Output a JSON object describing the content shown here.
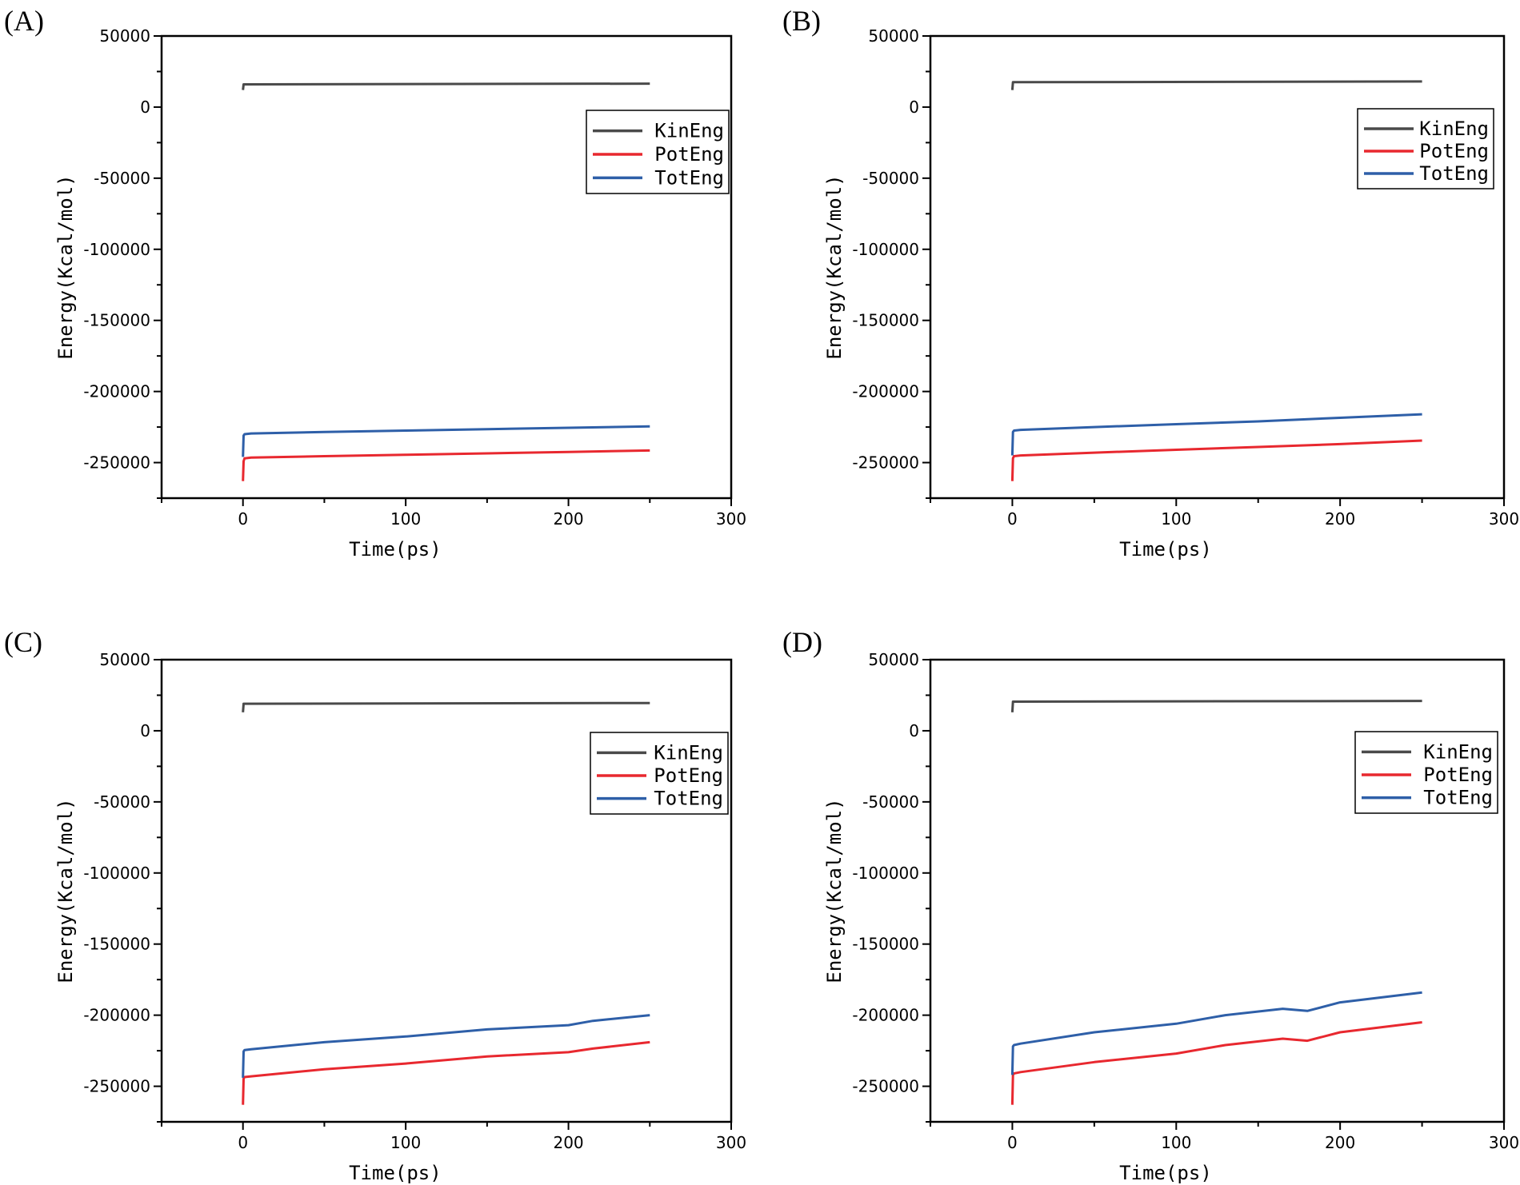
{
  "chart_data": [
    {
      "panel_label": "(A)",
      "type": "line",
      "xlabel": "Time(ps)",
      "ylabel": "Energy(Kcal/mol)",
      "xlim": [
        -50,
        300
      ],
      "ylim": [
        -275000,
        50000
      ],
      "xticks": [
        0,
        100,
        200,
        300
      ],
      "yticks": [
        50000,
        0,
        -50000,
        -100000,
        -150000,
        -200000,
        -250000
      ],
      "legend_position": "top-right",
      "series": [
        {
          "name": "KinEng",
          "color": "#4a4a4a",
          "points": [
            [
              0,
              12000
            ],
            [
              0.4,
              16000
            ],
            [
              250,
              16500
            ]
          ]
        },
        {
          "name": "PotEng",
          "color": "#e8282f",
          "points": [
            [
              0,
              -263000
            ],
            [
              0.4,
              -249000
            ],
            [
              1,
              -247000
            ],
            [
              5,
              -246500
            ],
            [
              50,
              -245500
            ],
            [
              100,
              -244500
            ],
            [
              150,
              -243500
            ],
            [
              200,
              -242500
            ],
            [
              250,
              -241500
            ]
          ]
        },
        {
          "name": "TotEng",
          "color": "#2e5fa8",
          "points": [
            [
              0,
              -246000
            ],
            [
              0.4,
              -231000
            ],
            [
              1,
              -230000
            ],
            [
              5,
              -229500
            ],
            [
              50,
              -228500
            ],
            [
              100,
              -227500
            ],
            [
              150,
              -226500
            ],
            [
              200,
              -225500
            ],
            [
              250,
              -224500
            ]
          ]
        }
      ]
    },
    {
      "panel_label": "(B)",
      "type": "line",
      "xlabel": "Time(ps)",
      "ylabel": "Energy(Kcal/mol)",
      "xlim": [
        -50,
        300
      ],
      "ylim": [
        -275000,
        50000
      ],
      "xticks": [
        0,
        100,
        200,
        300
      ],
      "yticks": [
        50000,
        0,
        -50000,
        -100000,
        -150000,
        -200000,
        -250000
      ],
      "legend_position": "top-right",
      "series": [
        {
          "name": "KinEng",
          "color": "#4a4a4a",
          "points": [
            [
              0,
              12000
            ],
            [
              0.4,
              17500
            ],
            [
              250,
              18000
            ]
          ]
        },
        {
          "name": "PotEng",
          "color": "#e8282f",
          "points": [
            [
              0,
              -263000
            ],
            [
              0.4,
              -247000
            ],
            [
              1,
              -245500
            ],
            [
              5,
              -245000
            ],
            [
              50,
              -243000
            ],
            [
              100,
              -241000
            ],
            [
              150,
              -239000
            ],
            [
              200,
              -237000
            ],
            [
              250,
              -234500
            ]
          ]
        },
        {
          "name": "TotEng",
          "color": "#2e5fa8",
          "points": [
            [
              0,
              -245000
            ],
            [
              0.4,
              -228500
            ],
            [
              1,
              -227500
            ],
            [
              5,
              -227000
            ],
            [
              50,
              -225000
            ],
            [
              100,
              -223000
            ],
            [
              150,
              -221000
            ],
            [
              200,
              -218500
            ],
            [
              250,
              -216000
            ]
          ]
        }
      ]
    },
    {
      "panel_label": "(C)",
      "type": "line",
      "xlabel": "Time(ps)",
      "ylabel": "Energy(Kcal/mol)",
      "xlim": [
        -50,
        300
      ],
      "ylim": [
        -275000,
        50000
      ],
      "xticks": [
        0,
        100,
        200,
        300
      ],
      "yticks": [
        50000,
        0,
        -50000,
        -100000,
        -150000,
        -200000,
        -250000
      ],
      "legend_position": "top-right",
      "series": [
        {
          "name": "KinEng",
          "color": "#4a4a4a",
          "points": [
            [
              0,
              13000
            ],
            [
              0.4,
              19000
            ],
            [
              250,
              19500
            ]
          ]
        },
        {
          "name": "PotEng",
          "color": "#e8282f",
          "points": [
            [
              0,
              -263000
            ],
            [
              0.4,
              -244500
            ],
            [
              1,
              -243500
            ],
            [
              5,
              -243000
            ],
            [
              50,
              -238000
            ],
            [
              100,
              -234000
            ],
            [
              150,
              -229000
            ],
            [
              200,
              -226000
            ],
            [
              215,
              -223500
            ],
            [
              250,
              -219000
            ]
          ]
        },
        {
          "name": "TotEng",
          "color": "#2e5fa8",
          "points": [
            [
              0,
              -244000
            ],
            [
              0.4,
              -225500
            ],
            [
              1,
              -224500
            ],
            [
              5,
              -224000
            ],
            [
              50,
              -219000
            ],
            [
              100,
              -215000
            ],
            [
              150,
              -210000
            ],
            [
              200,
              -207000
            ],
            [
              215,
              -204000
            ],
            [
              250,
              -200000
            ]
          ]
        }
      ]
    },
    {
      "panel_label": "(D)",
      "type": "line",
      "xlabel": "Time(ps)",
      "ylabel": "Energy(Kcal/mol)",
      "xlim": [
        -50,
        300
      ],
      "ylim": [
        -275000,
        50000
      ],
      "xticks": [
        0,
        100,
        200,
        300
      ],
      "yticks": [
        50000,
        0,
        -50000,
        -100000,
        -150000,
        -200000,
        -250000
      ],
      "legend_position": "top-right",
      "series": [
        {
          "name": "KinEng",
          "color": "#4a4a4a",
          "points": [
            [
              0,
              13000
            ],
            [
              0.4,
              20500
            ],
            [
              250,
              21000
            ]
          ]
        },
        {
          "name": "PotEng",
          "color": "#e8282f",
          "points": [
            [
              0,
              -263000
            ],
            [
              0.4,
              -242000
            ],
            [
              1,
              -241000
            ],
            [
              5,
              -240000
            ],
            [
              50,
              -233000
            ],
            [
              100,
              -227000
            ],
            [
              130,
              -221000
            ],
            [
              165,
              -216500
            ],
            [
              180,
              -218000
            ],
            [
              200,
              -212000
            ],
            [
              250,
              -205000
            ]
          ]
        },
        {
          "name": "TotEng",
          "color": "#2e5fa8",
          "points": [
            [
              0,
              -242000
            ],
            [
              0.4,
              -222000
            ],
            [
              1,
              -221000
            ],
            [
              5,
              -220000
            ],
            [
              50,
              -212000
            ],
            [
              100,
              -206000
            ],
            [
              130,
              -200000
            ],
            [
              165,
              -195500
            ],
            [
              180,
              -197000
            ],
            [
              200,
              -191000
            ],
            [
              250,
              -184000
            ]
          ]
        }
      ]
    }
  ]
}
